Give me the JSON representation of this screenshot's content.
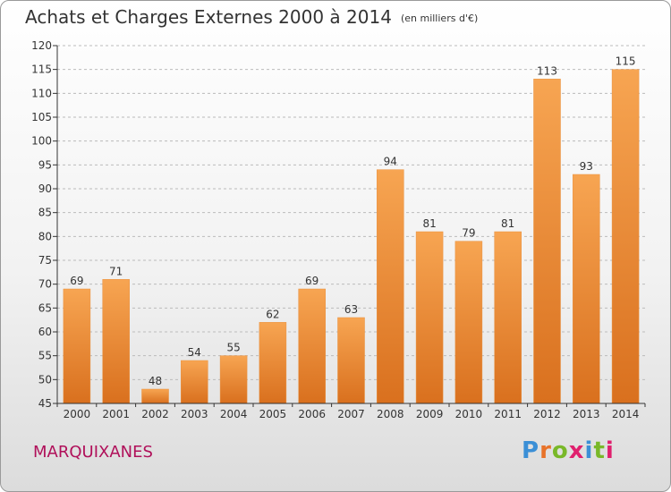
{
  "title": "Achats et Charges Externes 2000 à 2014",
  "subtitle": "(en milliers d'€)",
  "commune": "MARQUIXANES",
  "brand": {
    "letters": [
      "P",
      "r",
      "o",
      "x",
      "i",
      "t",
      "i"
    ],
    "colors": [
      "#3b8fd6",
      "#e8732a",
      "#79b829",
      "#e0206e",
      "#3b8fd6",
      "#79b829",
      "#e0206e"
    ]
  },
  "colors": {
    "bar_top": "#f7a552",
    "bar_bottom": "#d9701e",
    "axis": "#333333",
    "grid": "#bbbbbb"
  },
  "chart_data": {
    "type": "bar",
    "title": "Achats et Charges Externes 2000 à 2014",
    "subtitle": "(en milliers d'€)",
    "xlabel": "",
    "ylabel": "",
    "categories": [
      "2000",
      "2001",
      "2002",
      "2003",
      "2004",
      "2005",
      "2006",
      "2007",
      "2008",
      "2009",
      "2010",
      "2011",
      "2012",
      "2013",
      "2014"
    ],
    "values": [
      69,
      71,
      48,
      54,
      55,
      62,
      69,
      63,
      94,
      81,
      79,
      81,
      113,
      93,
      115
    ],
    "ylim": [
      45,
      120
    ],
    "yticks": [
      45,
      50,
      55,
      60,
      65,
      70,
      75,
      80,
      85,
      90,
      95,
      100,
      105,
      110,
      115,
      120
    ],
    "grid": "horizontal dashed",
    "legend": "none"
  }
}
